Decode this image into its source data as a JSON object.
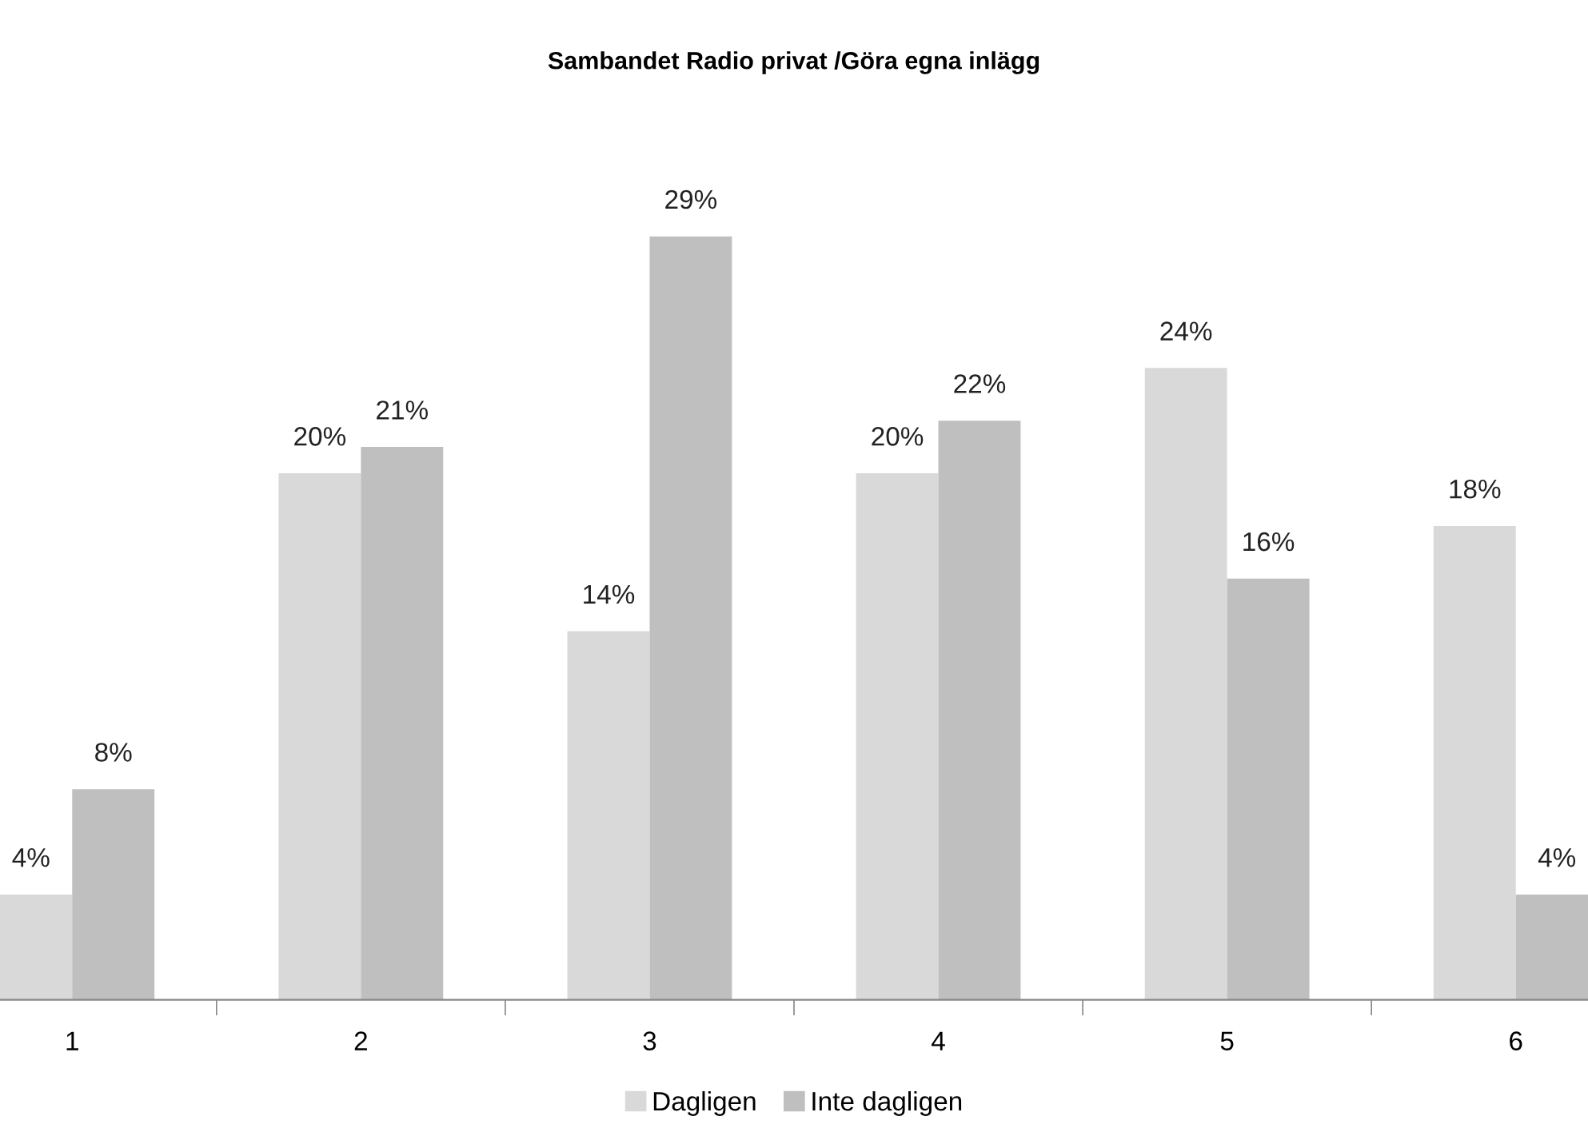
{
  "chart_data": {
    "type": "bar",
    "title": "Sambandet Radio privat /Göra egna inlägg",
    "categories": [
      "1",
      "2",
      "3",
      "4",
      "5",
      "6"
    ],
    "series": [
      {
        "name": "Dagligen",
        "color": "#d9d9d9",
        "values": [
          4,
          20,
          14,
          20,
          24,
          18
        ],
        "value_labels": [
          "4%",
          "20%",
          "14%",
          "20%",
          "24%",
          "18%"
        ]
      },
      {
        "name": "Inte dagligen",
        "color": "#bfbfbf",
        "values": [
          8,
          21,
          29,
          22,
          16,
          4
        ],
        "value_labels": [
          "8%",
          "21%",
          "29%",
          "22%",
          "16%",
          "4%"
        ]
      }
    ],
    "legend": "bottom",
    "grid": false
  }
}
